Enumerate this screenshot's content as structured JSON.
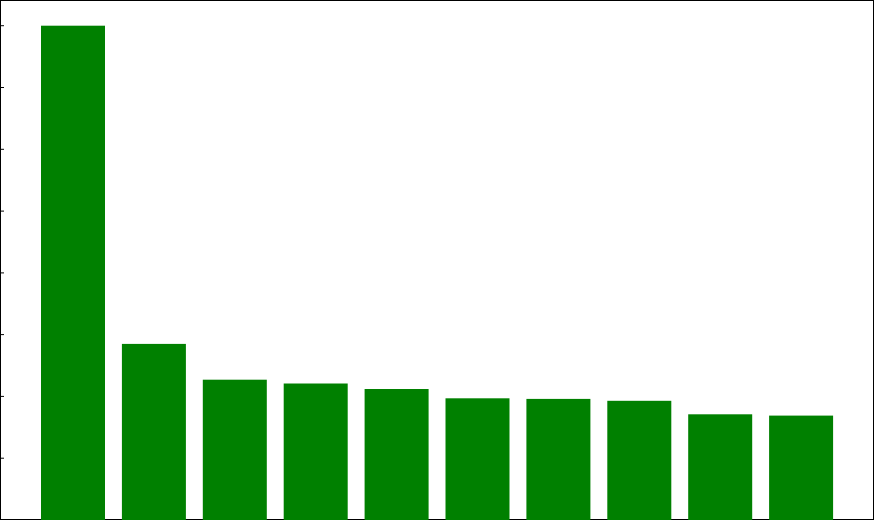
{
  "chart_data": {
    "type": "bar",
    "color": "#008000",
    "axes_color": "#000000",
    "background": "#ffffff",
    "grid": false,
    "values": [
      8.0,
      2.85,
      2.27,
      2.21,
      2.12,
      1.97,
      1.96,
      1.93,
      1.71,
      1.69
    ],
    "ylim": [
      0,
      8.4
    ],
    "ytick_values": [
      1,
      2,
      3,
      4,
      5,
      6,
      7,
      8
    ]
  }
}
